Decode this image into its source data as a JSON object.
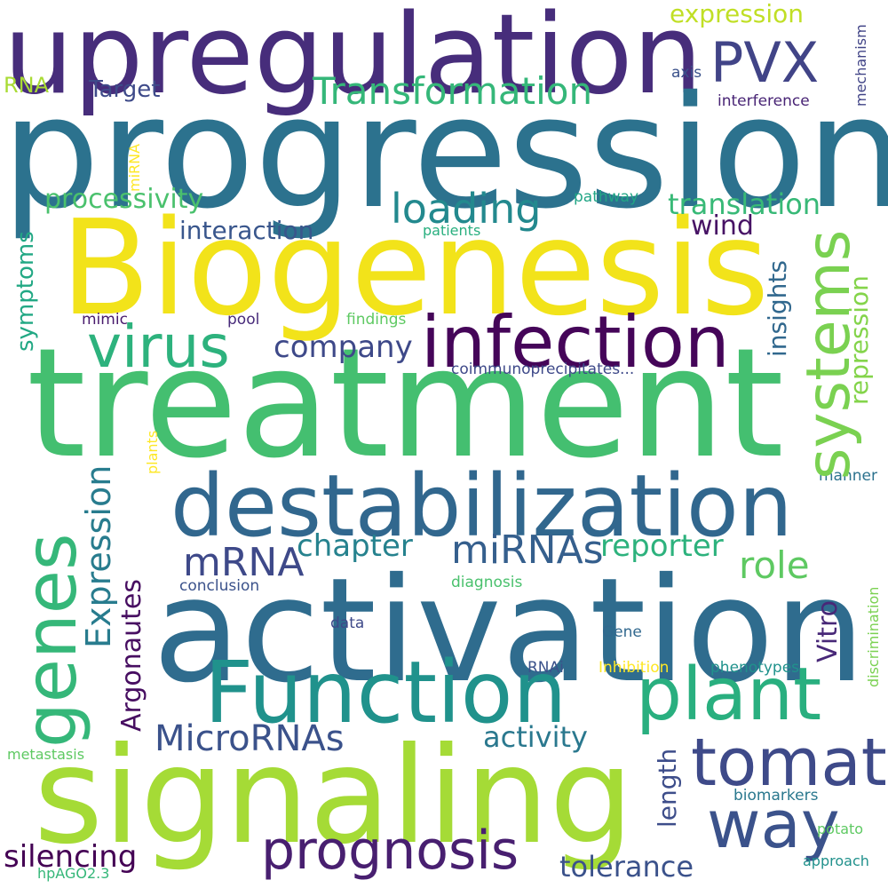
{
  "palette": {
    "background": "#ffffff",
    "word_colors": [
      "#440154",
      "#3b528b",
      "#21918c",
      "#5ec962",
      "#fde725"
    ]
  },
  "words": [
    {
      "text": "upregulation",
      "color": "#472d7b"
    },
    {
      "text": "progression",
      "color": "#2c728e"
    },
    {
      "text": "Biogenesis",
      "color": "#f2e31a"
    },
    {
      "text": "treatment",
      "color": "#44bf70"
    },
    {
      "text": "activation",
      "color": "#2f6c8e"
    },
    {
      "text": "signaling",
      "color": "#a5db36"
    },
    {
      "text": "destabilization",
      "color": "#31678e"
    },
    {
      "text": "infection",
      "color": "#450559"
    },
    {
      "text": "Function",
      "color": "#20928c"
    },
    {
      "text": "plant",
      "color": "#29af7f"
    },
    {
      "text": "systems",
      "color": "#7ad151"
    },
    {
      "text": "tomato",
      "color": "#35b779"
    },
    {
      "text": "virus",
      "color": "#2db27d"
    },
    {
      "text": "genes",
      "color": "#3e4a89"
    },
    {
      "text": "way",
      "color": "#3b528b"
    },
    {
      "text": "prognosis",
      "color": "#481f70"
    },
    {
      "text": "PVX",
      "color": "#414487"
    },
    {
      "text": "Transformation",
      "color": "#35b779"
    },
    {
      "text": "loading",
      "color": "#23898e"
    },
    {
      "text": "mRNA",
      "color": "#3e4989"
    },
    {
      "text": "miRNAs",
      "color": "#355f8d"
    },
    {
      "text": "MicroRNAs",
      "color": "#3b528b"
    },
    {
      "text": "Expression",
      "color": "#287c8e"
    },
    {
      "text": "role",
      "color": "#5ec962"
    },
    {
      "text": "company",
      "color": "#3e4989"
    },
    {
      "text": "chapter",
      "color": "#26828e"
    },
    {
      "text": "reporter",
      "color": "#2db27d"
    },
    {
      "text": "Argonautes",
      "color": "#470e61"
    },
    {
      "text": "activity",
      "color": "#2a788e"
    },
    {
      "text": "silencing",
      "color": "#440154"
    },
    {
      "text": "tolerance",
      "color": "#3b528b"
    },
    {
      "text": "repression",
      "color": "#84d44b"
    },
    {
      "text": "insights",
      "color": "#31688e"
    },
    {
      "text": "Vitro",
      "color": "#482878"
    },
    {
      "text": "length",
      "color": "#3d4d8a"
    },
    {
      "text": "expression",
      "color": "#c0df25"
    },
    {
      "text": "translation",
      "color": "#38b977"
    },
    {
      "text": "processivity",
      "color": "#4ac16d"
    },
    {
      "text": "interaction",
      "color": "#39568c"
    },
    {
      "text": "wind",
      "color": "#471365"
    },
    {
      "text": "Target",
      "color": "#3e4a89"
    },
    {
      "text": "symptoms",
      "color": "#22a884"
    },
    {
      "text": "RNA",
      "color": "#a8db34"
    },
    {
      "text": "axis",
      "color": "#3b528b"
    },
    {
      "text": "interference",
      "color": "#482475"
    },
    {
      "text": "mechanism",
      "color": "#414487"
    },
    {
      "text": "miRNA",
      "color": "#fde725"
    },
    {
      "text": "pathway",
      "color": "#21a585"
    },
    {
      "text": "patients",
      "color": "#29af7f"
    },
    {
      "text": "mimic",
      "color": "#481a6c"
    },
    {
      "text": "pool",
      "color": "#472a7a"
    },
    {
      "text": "findings",
      "color": "#5ec962"
    },
    {
      "text": "coimmunoprecipitates...",
      "color": "#3e4989"
    },
    {
      "text": "plants",
      "color": "#fde725"
    },
    {
      "text": "manner",
      "color": "#2c728e"
    },
    {
      "text": "conclusion",
      "color": "#3b528b"
    },
    {
      "text": "diagnosis",
      "color": "#4ac16d"
    },
    {
      "text": "data",
      "color": "#3e4989"
    },
    {
      "text": "Gene",
      "color": "#31688e"
    },
    {
      "text": "RNAi",
      "color": "#3b528b"
    },
    {
      "text": "Inhibition",
      "color": "#fde725"
    },
    {
      "text": "phenotypes",
      "color": "#20928c"
    },
    {
      "text": "discrimination",
      "color": "#7ad151"
    },
    {
      "text": "metastasis",
      "color": "#5ec962"
    },
    {
      "text": "biomarkers",
      "color": "#2a788e"
    },
    {
      "text": "potato",
      "color": "#5ec962"
    },
    {
      "text": "approach",
      "color": "#21918c"
    },
    {
      "text": "hpAGO2.3",
      "color": "#35b779"
    }
  ]
}
